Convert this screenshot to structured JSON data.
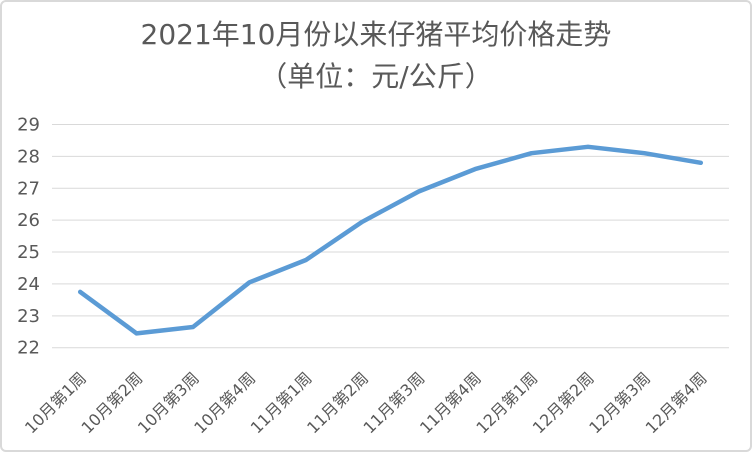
{
  "chart_data": {
    "type": "line",
    "title": "2021年10月份以来仔猪平均价格走势",
    "subtitle": "（单位：元/公斤）",
    "categories": [
      "10月第1周",
      "10月第2周",
      "10月第3周",
      "10月第4周",
      "11月第1周",
      "11月第2周",
      "11月第3周",
      "11月第4周",
      "12月第1周",
      "12月第2周",
      "12月第3周",
      "12月第4周"
    ],
    "series": [
      {
        "name": "仔猪平均价格",
        "values": [
          23.75,
          22.45,
          22.65,
          24.05,
          24.75,
          25.95,
          26.9,
          27.6,
          28.1,
          28.3,
          28.1,
          27.8
        ]
      }
    ],
    "xlabel": "",
    "ylabel": "",
    "ylim": [
      22,
      29
    ],
    "yticks": [
      22,
      23,
      24,
      25,
      26,
      27,
      28,
      29
    ],
    "grid": true,
    "legend_position": "none",
    "x_label_rotation_deg": -45
  },
  "colors": {
    "line": "#5b9bd5",
    "gridline": "#d9d9d9",
    "axis_text": "#595959",
    "title_text": "#595959",
    "frame_border": "#d9d9d9",
    "background": "#ffffff"
  }
}
